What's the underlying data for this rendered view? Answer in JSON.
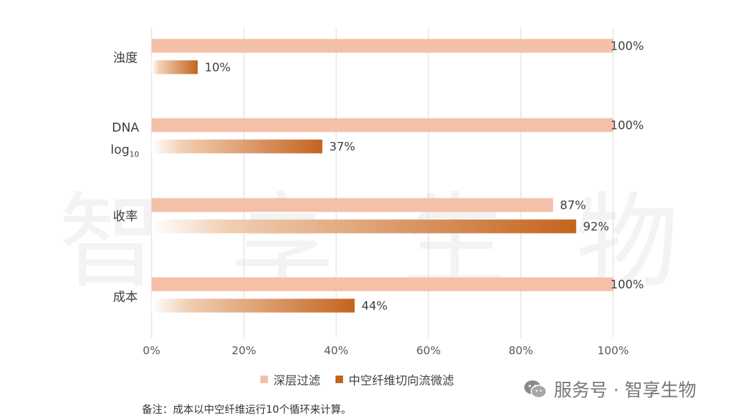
{
  "watermark": [
    "智",
    "享",
    "生",
    "物"
  ],
  "chart_data": {
    "type": "bar",
    "orientation": "horizontal",
    "categories": [
      "浊度",
      "DNA log₁₀",
      "收率",
      "成本"
    ],
    "series": [
      {
        "name": "深层过滤",
        "values": [
          100,
          100,
          87,
          100
        ],
        "labels": [
          "100%",
          "100%",
          "87%",
          "100%"
        ],
        "color": "#f4c0a8"
      },
      {
        "name": "中空纤维切向流微滤",
        "values": [
          10,
          37,
          92,
          44
        ],
        "labels": [
          "10%",
          "37%",
          "92%",
          "44%"
        ],
        "color": "#c4641f"
      }
    ],
    "xlim": [
      0,
      100
    ],
    "xticks": [
      "0%",
      "20%",
      "40%",
      "60%",
      "80%",
      "100%"
    ],
    "grid": true,
    "legend_position": "bottom"
  },
  "legend": {
    "deep": "深层过滤",
    "hollow": "中空纤维切向流微滤"
  },
  "note": "备注：成本以中空纤维运行10个循环来计算。",
  "wechat": {
    "text": "服务号 · 智享生物",
    "icon": "wechat-icon"
  }
}
